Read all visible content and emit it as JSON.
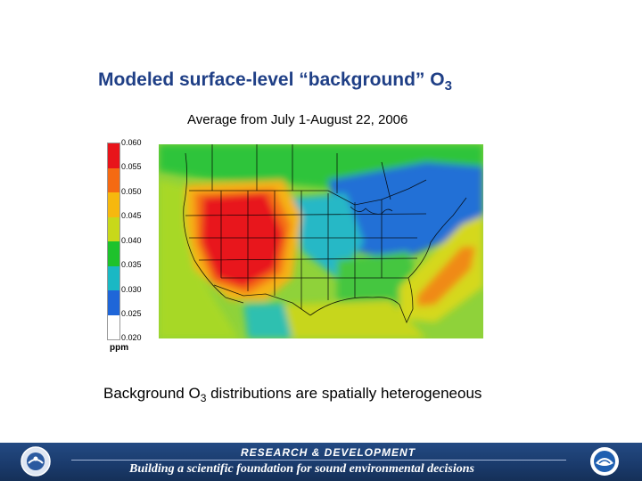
{
  "title": {
    "text": "Modeled surface-level “background” O",
    "sub": "3"
  },
  "subtitle": "Average from July 1-August 22, 2006",
  "legend": {
    "unit": "ppm",
    "ticks": [
      "0.060",
      "0.055",
      "0.050",
      "0.045",
      "0.040",
      "0.035",
      "0.030",
      "0.025",
      "0.020"
    ],
    "colors": [
      "#e8141a",
      "#f56a12",
      "#f6b80e",
      "#c8d81a",
      "#1ec22c",
      "#1ab8c4",
      "#1f66d8",
      "#ffffff"
    ]
  },
  "caption": {
    "pre": "Background O",
    "sub": "3",
    "post": " distributions are spatially heterogeneous"
  },
  "footer": {
    "heading": "RESEARCH & DEVELOPMENT",
    "tagline": "Building a scientific foundation for sound environmental decisions"
  }
}
